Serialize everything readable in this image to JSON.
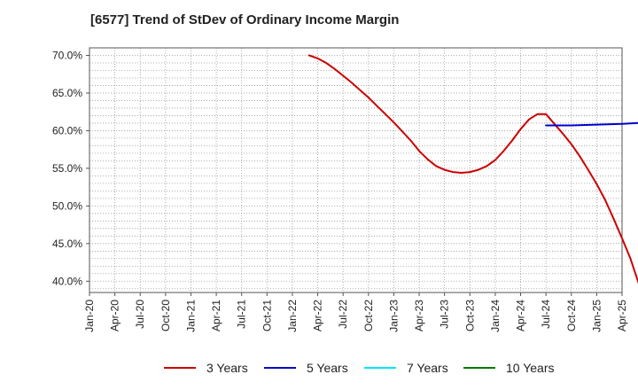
{
  "chart_data": {
    "type": "line",
    "title": "[6577]  Trend of StDev of Ordinary Income Margin",
    "xlabel": "",
    "ylabel": "",
    "x_tick_labels": [
      "Jan-20",
      "Apr-20",
      "Jul-20",
      "Oct-20",
      "Jan-21",
      "Apr-21",
      "Jul-21",
      "Oct-21",
      "Jan-22",
      "Apr-22",
      "Jul-22",
      "Oct-22",
      "Jan-23",
      "Apr-23",
      "Jul-23",
      "Oct-23",
      "Jan-24",
      "Apr-24",
      "Jul-24",
      "Oct-24",
      "Jan-25",
      "Apr-25"
    ],
    "y_tick_labels": [
      "70.0%",
      "65.0%",
      "60.0%",
      "55.0%",
      "50.0%",
      "45.0%",
      "40.0%"
    ],
    "y_ticks": [
      70,
      65,
      60,
      55,
      50,
      45,
      40
    ],
    "ylim": [
      38.5,
      71
    ],
    "xlim": [
      "Jan-20",
      "Apr-25"
    ],
    "grid": true,
    "legend_position": "bottom",
    "series": [
      {
        "name": "3 Years",
        "color": "#cc0000",
        "points": [
          [
            "Mar-22",
            70.0
          ],
          [
            "Apr-22",
            69.6
          ],
          [
            "May-22",
            69.0
          ],
          [
            "Jun-22",
            68.2
          ],
          [
            "Jul-22",
            67.3
          ],
          [
            "Aug-22",
            66.4
          ],
          [
            "Sep-22",
            65.4
          ],
          [
            "Oct-22",
            64.4
          ],
          [
            "Nov-22",
            63.3
          ],
          [
            "Dec-22",
            62.2
          ],
          [
            "Jan-23",
            61.1
          ],
          [
            "Feb-23",
            59.9
          ],
          [
            "Mar-23",
            58.7
          ],
          [
            "Apr-23",
            57.3
          ],
          [
            "May-23",
            56.2
          ],
          [
            "Jun-23",
            55.3
          ],
          [
            "Jul-23",
            54.8
          ],
          [
            "Aug-23",
            54.5
          ],
          [
            "Sep-23",
            54.4
          ],
          [
            "Oct-23",
            54.5
          ],
          [
            "Nov-23",
            54.8
          ],
          [
            "Dec-23",
            55.3
          ],
          [
            "Jan-24",
            56.1
          ],
          [
            "Feb-24",
            57.3
          ],
          [
            "Mar-24",
            58.7
          ],
          [
            "Apr-24",
            60.2
          ],
          [
            "May-24",
            61.5
          ],
          [
            "Jun-24",
            62.2
          ],
          [
            "Jul-24",
            62.2
          ],
          [
            "Aug-24",
            60.9
          ],
          [
            "Sep-24",
            59.6
          ],
          [
            "Oct-24",
            58.2
          ],
          [
            "Nov-24",
            56.6
          ],
          [
            "Dec-24",
            54.8
          ],
          [
            "Jan-25",
            52.9
          ],
          [
            "Feb-25",
            50.8
          ],
          [
            "Mar-25",
            48.3
          ],
          [
            "Apr-25",
            45.7
          ],
          [
            "May-25",
            43.0
          ],
          [
            "Jun-25",
            39.6
          ]
        ]
      },
      {
        "name": "5 Years",
        "color": "#0000cc",
        "points": [
          [
            "Jul-24",
            60.7
          ],
          [
            "Oct-24",
            60.7
          ],
          [
            "Jan-25",
            60.8
          ],
          [
            "Apr-25",
            60.9
          ],
          [
            "Jul-25",
            61.1
          ],
          [
            "Aug-25",
            61.2
          ]
        ]
      },
      {
        "name": "7 Years",
        "color": "#00e5ff",
        "points": []
      },
      {
        "name": "10 Years",
        "color": "#007700",
        "points": []
      }
    ]
  }
}
